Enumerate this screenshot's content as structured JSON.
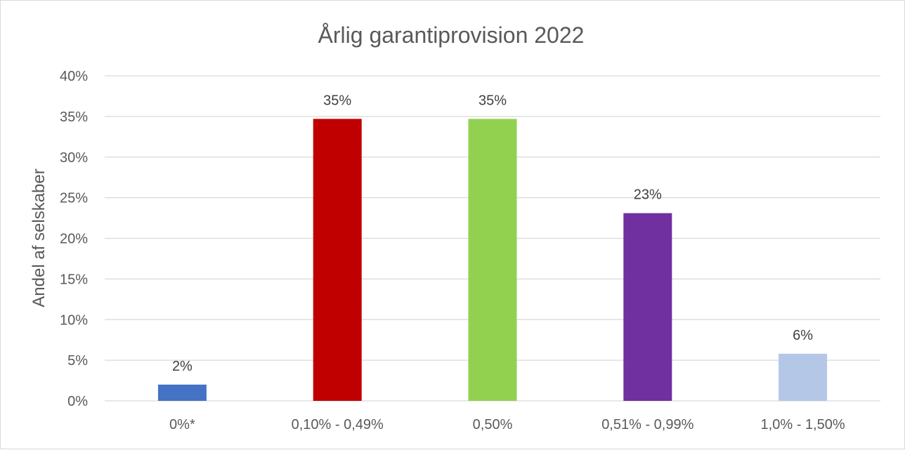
{
  "chart_data": {
    "type": "bar",
    "title": "Årlig garantiprovision  2022",
    "xlabel": "",
    "ylabel": "Andel af selskaber",
    "categories": [
      "0%*",
      "0,10% - 0,49%",
      "0,50%",
      "0,51% - 0,99%",
      "1,0% - 1,50%"
    ],
    "values": [
      0.02,
      0.347,
      0.347,
      0.231,
      0.058
    ],
    "data_labels": [
      "2%",
      "35%",
      "35%",
      "23%",
      "6%"
    ],
    "colors": [
      "#4472c4",
      "#c00000",
      "#92d050",
      "#7030a0",
      "#b4c7e7"
    ],
    "ylim": [
      0,
      0.4
    ],
    "yticks": [
      0,
      0.05,
      0.1,
      0.15,
      0.2,
      0.25,
      0.3,
      0.35,
      0.4
    ],
    "ytick_labels": [
      "0%",
      "5%",
      "10%",
      "15%",
      "20%",
      "25%",
      "30%",
      "35%",
      "40%"
    ],
    "grid": true,
    "legend": "none"
  }
}
